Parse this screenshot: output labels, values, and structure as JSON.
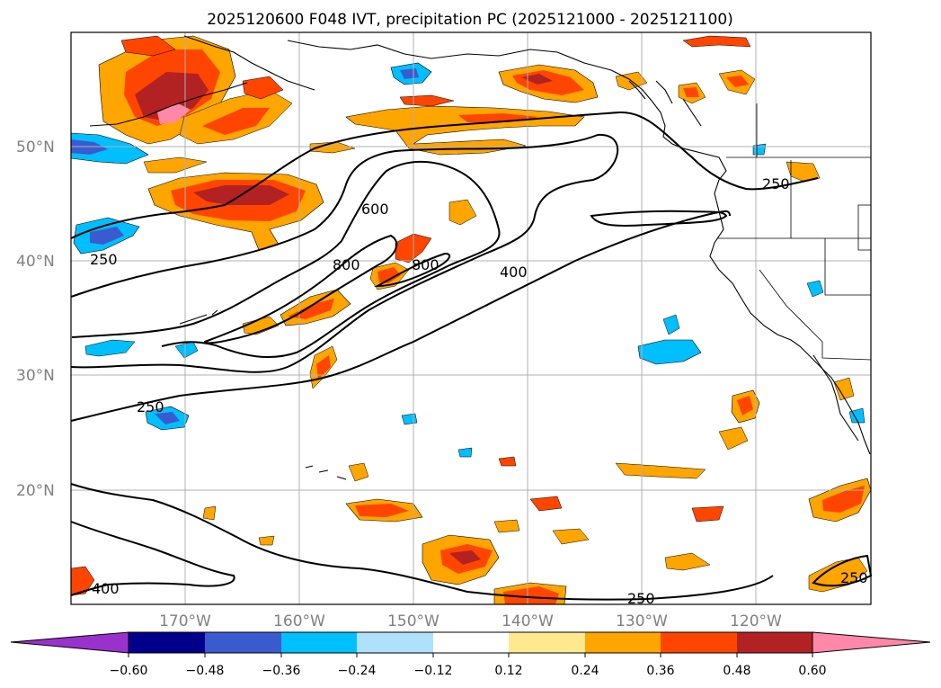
{
  "title": "2025120600 F048 IVT, precipitation PC (2025121000 - 2025121100)",
  "map": {
    "projection": "PlateCarree",
    "lon_range": [
      -180,
      -110
    ],
    "lat_range": [
      10,
      60
    ],
    "lat_labels": [
      "50°N",
      "40°N",
      "30°N",
      "20°N"
    ],
    "lon_labels": [
      "170°W",
      "160°W",
      "150°W",
      "140°W",
      "130°W",
      "120°W"
    ]
  },
  "ivt_contours": {
    "levels": [
      250,
      400,
      600,
      800
    ],
    "labels": [
      "250",
      "250",
      "250",
      "250",
      "250",
      "400",
      "400",
      "600",
      "800",
      "800"
    ]
  },
  "colorbar": {
    "ticks": [
      "−0.60",
      "−0.48",
      "−0.36",
      "−0.24",
      "−0.12",
      "0.12",
      "0.24",
      "0.36",
      "0.48",
      "0.60"
    ],
    "colors": {
      "under": "#9932cc",
      "bins": [
        "#00008b",
        "#3a5bd0",
        "#00bfff",
        "#aee1fb",
        "#ffffff",
        "#ffe98f",
        "#ffa500",
        "#ff4500",
        "#b22222"
      ],
      "over": "#ff88a8"
    }
  },
  "precip_colors": {
    "yellow": "#ffe98f",
    "orange": "#ffa500",
    "red_orange": "#ff4500",
    "dark_red": "#b22222",
    "pink": "#ff88a8",
    "light_blue": "#aee1fb",
    "sky_blue": "#00bfff",
    "royal_blue": "#3a5bd0"
  }
}
